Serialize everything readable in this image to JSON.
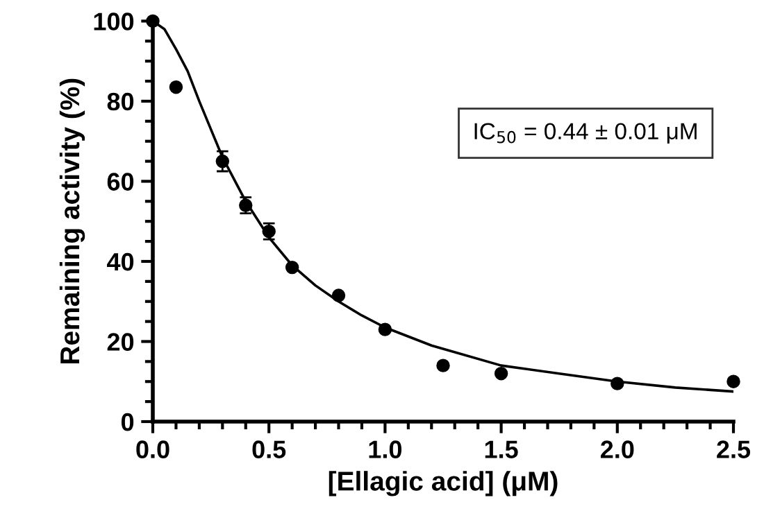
{
  "chart_data": {
    "type": "scatter",
    "xlabel": "[Ellagic acid] (μM)",
    "ylabel": "Remaining activity (%)",
    "xlim": [
      0,
      2.5
    ],
    "xticks": [
      {
        "value": 0,
        "label": "0.0"
      },
      0.5,
      {
        "value": 1,
        "label": "1.0"
      },
      1.5,
      {
        "value": 2,
        "label": "2.0"
      },
      2.5
    ],
    "ylim": [
      0,
      100
    ],
    "yticks": [
      0,
      20,
      40,
      60,
      80,
      100
    ],
    "grid": false,
    "annotations": [
      "IC$_{50}$ = 0.44 ± 0.01 μM"
    ],
    "series": [
      {
        "color": "#000000",
        "marker": "circle",
        "x": [
          0,
          0.1,
          0.3,
          0.4,
          0.5,
          0.6,
          0.8,
          1.0,
          1.25,
          1.5,
          2.0,
          2.5
        ],
        "values": [
          100,
          83.5,
          65,
          54,
          47.5,
          38.5,
          31.5,
          23,
          14,
          12,
          9.5,
          10
        ],
        "errors": [
          null,
          null,
          2.5,
          2,
          2,
          null,
          null,
          null,
          null,
          null,
          null,
          null
        ]
      },
      {
        "type": "line",
        "color": "#000000",
        "marker": "none",
        "line_style": "solid",
        "x": [
          0,
          0.05,
          0.1,
          0.15,
          0.2,
          0.25,
          0.3,
          0.4,
          0.5,
          0.6,
          0.7,
          0.8,
          0.9,
          1.0,
          1.2,
          1.5,
          1.75,
          2.0,
          2.25,
          2.5
        ],
        "values": [
          100,
          98,
          93,
          87.5,
          80,
          73,
          66,
          55,
          46,
          39,
          34,
          30,
          26.5,
          23.5,
          19,
          14,
          12,
          10,
          8.5,
          7.5
        ]
      }
    ]
  }
}
